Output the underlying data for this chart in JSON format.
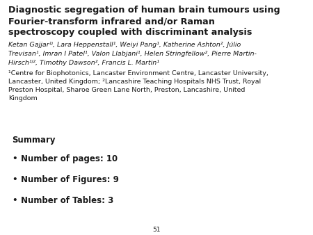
{
  "background_color": "#ffffff",
  "title_line1": "Diagnostic segregation of human brain tumours using",
  "title_line2": "Fourier-transform infrared and/or Raman",
  "title_line3": "spectroscopy coupled with discriminant analysis",
  "authors_line1": "Ketan Gajjar¹ʲ, Lara Heppenstall¹, Weiyi Pang¹, Katherine Ashton², Júlio",
  "authors_line2": "Trevisan¹, Imran I Patel¹, Valon Llabjani¹, Helen Stringfellow², Pierre Martin-",
  "authors_line3": "Hirsch¹ʲ², Timothy Dawson², Francis L. Martin¹",
  "affil_line1": "¹Centre for Biophotonics, Lancaster Environment Centre, Lancaster University,",
  "affil_line2": "Lancaster, United Kingdom; ²Lancashire Teaching Hospitals NHS Trust, Royal",
  "affil_line3": "Preston Hospital, Sharoe Green Lane North, Preston, Lancashire, United",
  "affil_line4": "Kingdom",
  "summary_label": "Summary",
  "bullet_items": [
    "Number of pages: 10",
    "Number of Figures: 9",
    "Number of Tables: 3"
  ],
  "page_number": "51",
  "text_color": "#1a1a1a",
  "font_size_title": 9.2,
  "font_size_authors": 6.8,
  "font_size_affiliations": 6.8,
  "font_size_summary": 8.5,
  "font_size_bullets": 8.5,
  "font_size_page": 6.5
}
